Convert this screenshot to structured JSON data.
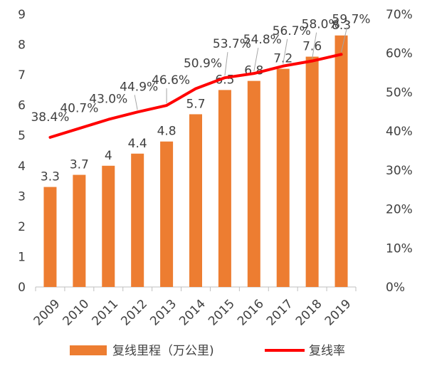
{
  "chart_data": {
    "type": "bar",
    "categories": [
      "2009",
      "2010",
      "2011",
      "2012",
      "2013",
      "2014",
      "2015",
      "2016",
      "2017",
      "2018",
      "2019"
    ],
    "series": [
      {
        "name": "复线里程（万公里)",
        "type": "bar",
        "axis": "left",
        "color": "#ED7D31",
        "values": [
          3.3,
          3.7,
          4,
          4.4,
          4.8,
          5.7,
          6.5,
          6.8,
          7.2,
          7.6,
          8.3
        ],
        "value_labels": [
          "3.3",
          "3.7",
          "4",
          "4.4",
          "4.8",
          "5.7",
          "6.5",
          "6.8",
          "7.2",
          "7.6",
          "8.3"
        ]
      },
      {
        "name": "复线率",
        "type": "line",
        "axis": "right",
        "color": "#FF0000",
        "values": [
          38.4,
          40.7,
          43.0,
          44.9,
          46.6,
          50.9,
          53.7,
          54.8,
          56.7,
          58.0,
          59.7
        ],
        "value_labels": [
          "38.4%",
          "40.7%",
          "43.0%",
          "44.9%",
          "46.6%",
          "50.9%",
          "53.7%",
          "54.8%",
          "56.7%",
          "58.0%",
          "59.7%"
        ]
      }
    ],
    "y_left": {
      "min": 0,
      "max": 9,
      "ticks": [
        "0",
        "1",
        "2",
        "3",
        "4",
        "5",
        "6",
        "7",
        "8",
        "9"
      ]
    },
    "y_right": {
      "min": 0,
      "max": 70,
      "ticks": [
        "0%",
        "10%",
        "20%",
        "30%",
        "40%",
        "50%",
        "60%",
        "70%"
      ]
    },
    "grid": false,
    "legend_position": "bottom"
  }
}
